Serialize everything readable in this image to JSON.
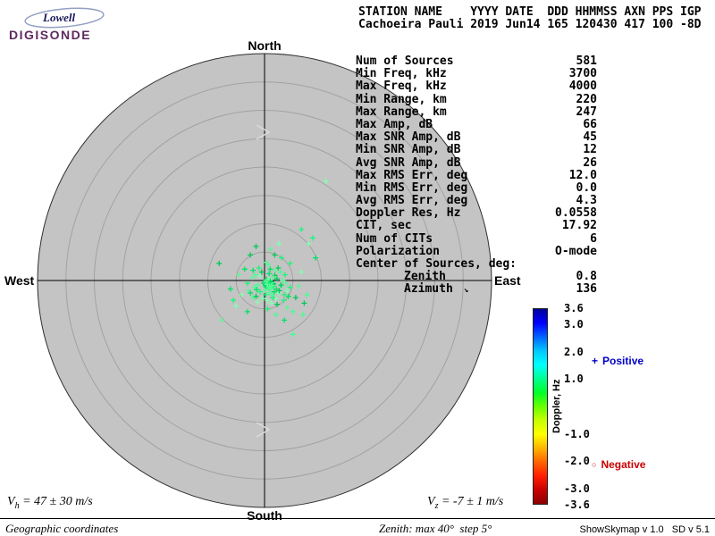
{
  "logo": {
    "line1": "Lowell",
    "line2": "DIGISONDE"
  },
  "header": {
    "columns": "STATION NAME    YYYY DATE  DDD HHMMSS AXN PPS IGP",
    "values": "Cachoeira Pauli 2019 Jun14 165 120430 417 100 -8D"
  },
  "skymap": {
    "north": "North",
    "south": "South",
    "east": "East",
    "west": "West"
  },
  "stats": {
    "rows": [
      {
        "label": "Num of Sources",
        "value": "581"
      },
      {
        "label": "Min Freq, kHz",
        "value": "3700"
      },
      {
        "label": "Max Freq, kHz",
        "value": "4000"
      },
      {
        "label": "Min Range, km",
        "value": "220"
      },
      {
        "label": "Max Range, km",
        "value": "247"
      },
      {
        "label": "Max Amp, dB",
        "value": "66"
      },
      {
        "label": "Max SNR Amp, dB",
        "value": "45"
      },
      {
        "label": "Min SNR Amp, dB",
        "value": "12"
      },
      {
        "label": "Avg SNR Amp, dB",
        "value": "26"
      },
      {
        "label": "Max RMS Err, deg",
        "value": "12.0"
      },
      {
        "label": "Min RMS Err, deg",
        "value": "0.0"
      },
      {
        "label": "Avg RMS Err, deg",
        "value": "4.3"
      },
      {
        "label": "Doppler Res, Hz",
        "value": "0.0558"
      },
      {
        "label": "CIT, sec",
        "value": "17.92"
      },
      {
        "label": "Num of CITs",
        "value": "6"
      },
      {
        "label": "Polarization",
        "value": "O-mode"
      },
      {
        "label": "Center of Sources, deg:",
        "value": ""
      },
      {
        "label": "Zenith",
        "value": "0.8",
        "indent": true
      },
      {
        "label": "Azimuth",
        "value": "136",
        "indent": true,
        "arrow": "↘"
      }
    ]
  },
  "colorbar": {
    "title": "Doppler, Hz",
    "max": 3.6,
    "min": -3.6,
    "gradient": [
      "#00009c",
      "#0000ff",
      "#0064ff",
      "#00c8ff",
      "#00ffff",
      "#00ff90",
      "#00ff2a",
      "#66ff00",
      "#c8ff00",
      "#ffff00",
      "#ffb400",
      "#ff6400",
      "#ff1e00",
      "#c80000",
      "#8c0000"
    ],
    "ticks": [
      {
        "value": 3.6,
        "label": "3.6"
      },
      {
        "value": 3.0,
        "label": "3.0"
      },
      {
        "value": 2.0,
        "label": "2.0"
      },
      {
        "value": 1.0,
        "label": "1.0"
      },
      {
        "value": -1.0,
        "label": "-1.0"
      },
      {
        "value": -2.0,
        "label": "-2.0"
      },
      {
        "value": -3.0,
        "label": "-3.0"
      },
      {
        "value": -3.6,
        "label": "-3.6"
      }
    ],
    "positive_symbol": "+",
    "positive_text": "Positive",
    "positive_color": "#0000c8",
    "negative_symbol": "○",
    "negative_text": "Negative",
    "negative_color": "#c80000"
  },
  "footer": {
    "vh": {
      "sym": "V",
      "sub": "h",
      "rest": " = 47 ± 30 m/s"
    },
    "vz": {
      "sym": "V",
      "sub": "z",
      "rest": " = -7 ± 1 m/s"
    },
    "coords": "Geographic coordinates",
    "zenith_note": "Zenith: max 40°  step 5°",
    "version": "ShowSkymap v 1.0   SD v 5.1"
  },
  "chart_data": {
    "type": "scatter",
    "title": "Digisonde skymap of ionospheric reflection sources",
    "projection": "polar zenith map, North up, East right",
    "zenith_max_deg": 40,
    "ring_step_deg": 5,
    "zenith_rings_deg": [
      5,
      10,
      15,
      20,
      25,
      30,
      35,
      40
    ],
    "num_sources": 581,
    "center_of_sources": {
      "zenith_deg": 0.8,
      "azimuth_deg": 136
    },
    "doppler_scale_hz": {
      "min": -3.6,
      "max": 3.6
    },
    "point_symbol": "+",
    "point_colors": [
      "#00e364",
      "#45ff93",
      "#00c957",
      "#82ffb1",
      "#1ef47c",
      "#63f29a"
    ],
    "disc_color": "#c4c4c4",
    "points": [
      [
        0.6,
        -0.5
      ],
      [
        0.8,
        -0.3
      ],
      [
        0.4,
        -0.8
      ],
      [
        1.0,
        -0.6
      ],
      [
        0.2,
        -0.4
      ],
      [
        0.7,
        -1.0
      ],
      [
        1.2,
        -0.5
      ],
      [
        0.5,
        -0.2
      ],
      [
        0.9,
        -0.9
      ],
      [
        0.3,
        -0.7
      ],
      [
        1.4,
        -0.8
      ],
      [
        0.1,
        -0.9
      ],
      [
        0.8,
        -1.3
      ],
      [
        1.1,
        -0.2
      ],
      [
        -0.1,
        -0.5
      ],
      [
        0.6,
        0.1
      ],
      [
        1.3,
        -1.1
      ],
      [
        0.4,
        -1.4
      ],
      [
        0.9,
        0.0
      ],
      [
        0.0,
        -0.2
      ],
      [
        1.6,
        -0.6
      ],
      [
        0.7,
        -0.7
      ],
      [
        0.2,
        -1.1
      ],
      [
        1.0,
        -1.5
      ],
      [
        0.5,
        -0.5
      ],
      [
        1.2,
        -1.3
      ],
      [
        0.3,
        0.2
      ],
      [
        0.8,
        -0.6
      ],
      [
        1.5,
        -1.0
      ],
      [
        0.6,
        -1.2
      ],
      [
        0.1,
        -0.3
      ],
      [
        1.1,
        -0.8
      ],
      [
        0.4,
        -0.1
      ],
      [
        0.9,
        -1.1
      ],
      [
        1.3,
        -0.4
      ],
      [
        0.2,
        -0.6
      ],
      [
        0.7,
        -0.2
      ],
      [
        1.0,
        -0.4
      ],
      [
        0.5,
        -0.9
      ],
      [
        0.8,
        0.2
      ],
      [
        0.55,
        -0.45
      ],
      [
        0.85,
        -0.75
      ],
      [
        0.25,
        -0.25
      ],
      [
        1.05,
        -0.95
      ],
      [
        0.65,
        -0.65
      ],
      [
        0.95,
        -0.35
      ],
      [
        0.35,
        -0.55
      ],
      [
        0.75,
        -0.85
      ],
      [
        1.15,
        -0.65
      ],
      [
        0.45,
        -1.05
      ],
      [
        0.15,
        -0.75
      ],
      [
        0.9,
        -0.55
      ],
      [
        0.6,
        -0.3
      ],
      [
        1.25,
        -0.85
      ],
      [
        0.3,
        -0.95
      ],
      [
        0.8,
        -1.1
      ],
      [
        1.0,
        -0.2
      ],
      [
        0.5,
        -0.7
      ],
      [
        0.7,
        -0.45
      ],
      [
        0.2,
        -0.1
      ],
      [
        2.1,
        -1.5
      ],
      [
        -1.2,
        -0.8
      ],
      [
        1.8,
        0.9
      ],
      [
        2.5,
        -2.2
      ],
      [
        -0.8,
        -2.0
      ],
      [
        3.0,
        -1.0
      ],
      [
        1.5,
        -3.0
      ],
      [
        -1.8,
        -1.2
      ],
      [
        2.2,
        0.3
      ],
      [
        0.5,
        -3.5
      ],
      [
        3.5,
        -2.5
      ],
      [
        -2.2,
        0.5
      ],
      [
        1.0,
        2.0
      ],
      [
        2.8,
        1.5
      ],
      [
        -1.5,
        -2.8
      ],
      [
        4.0,
        -1.8
      ],
      [
        0.2,
        -2.5
      ],
      [
        -2.8,
        -1.8
      ],
      [
        1.7,
        -2.0
      ],
      [
        3.2,
        0.0
      ],
      [
        -0.5,
        1.5
      ],
      [
        2.0,
        -3.2
      ],
      [
        -1.0,
        2.2
      ],
      [
        3.8,
        -0.5
      ],
      [
        0.8,
        1.2
      ],
      [
        -2.0,
        -3.0
      ],
      [
        2.6,
        -1.8
      ],
      [
        1.2,
        -4.0
      ],
      [
        -3.0,
        -0.5
      ],
      [
        0.0,
        -1.8
      ],
      [
        4.2,
        -2.8
      ],
      [
        -1.6,
        1.0
      ],
      [
        2.4,
        2.2
      ],
      [
        -0.3,
        -3.2
      ],
      [
        3.4,
        -3.5
      ],
      [
        1.9,
        1.8
      ],
      [
        -2.5,
        -2.2
      ],
      [
        0.6,
        2.8
      ],
      [
        2.9,
        -0.8
      ],
      [
        -1.2,
        -3.8
      ],
      [
        3.6,
        1.0
      ],
      [
        0.3,
        3.2
      ],
      [
        -2.0,
        1.8
      ],
      [
        1.4,
        -2.6
      ],
      [
        2.2,
        -4.2
      ],
      [
        -0.8,
        0.8
      ],
      [
        4.5,
        -1.2
      ],
      [
        1.6,
        0.6
      ],
      [
        -1.4,
        -1.6
      ],
      [
        0.9,
        -2.2
      ],
      [
        5.5,
        -3.0
      ],
      [
        -4.0,
        -2.5
      ],
      [
        3.0,
        4.0
      ],
      [
        6.0,
        -1.0
      ],
      [
        -3.5,
        2.0
      ],
      [
        2.0,
        -6.0
      ],
      [
        7.0,
        -4.0
      ],
      [
        -5.0,
        -4.5
      ],
      [
        4.5,
        3.0
      ],
      [
        1.0,
        5.5
      ],
      [
        -6.0,
        -1.5
      ],
      [
        5.0,
        -5.5
      ],
      [
        -2.5,
        4.5
      ],
      [
        6.5,
        1.5
      ],
      [
        0.5,
        -5.0
      ],
      [
        -4.5,
        1.0
      ],
      [
        3.5,
        -7.0
      ],
      [
        7.5,
        -2.5
      ],
      [
        -1.5,
        6.0
      ],
      [
        2.5,
        6.5
      ],
      [
        -5.5,
        -3.5
      ],
      [
        4.0,
        -4.8
      ],
      [
        -3.0,
        -5.5
      ],
      [
        6.8,
        -6.0
      ],
      [
        1.8,
        4.5
      ],
      [
        10.8,
        17.5
      ],
      [
        6.5,
        9.0
      ],
      [
        -7.5,
        -7.0
      ],
      [
        9.0,
        4.0
      ],
      [
        5.0,
        -9.5
      ],
      [
        -8.0,
        3.0
      ],
      [
        7.8,
        6.5
      ],
      [
        8.5,
        7.5
      ]
    ]
  }
}
